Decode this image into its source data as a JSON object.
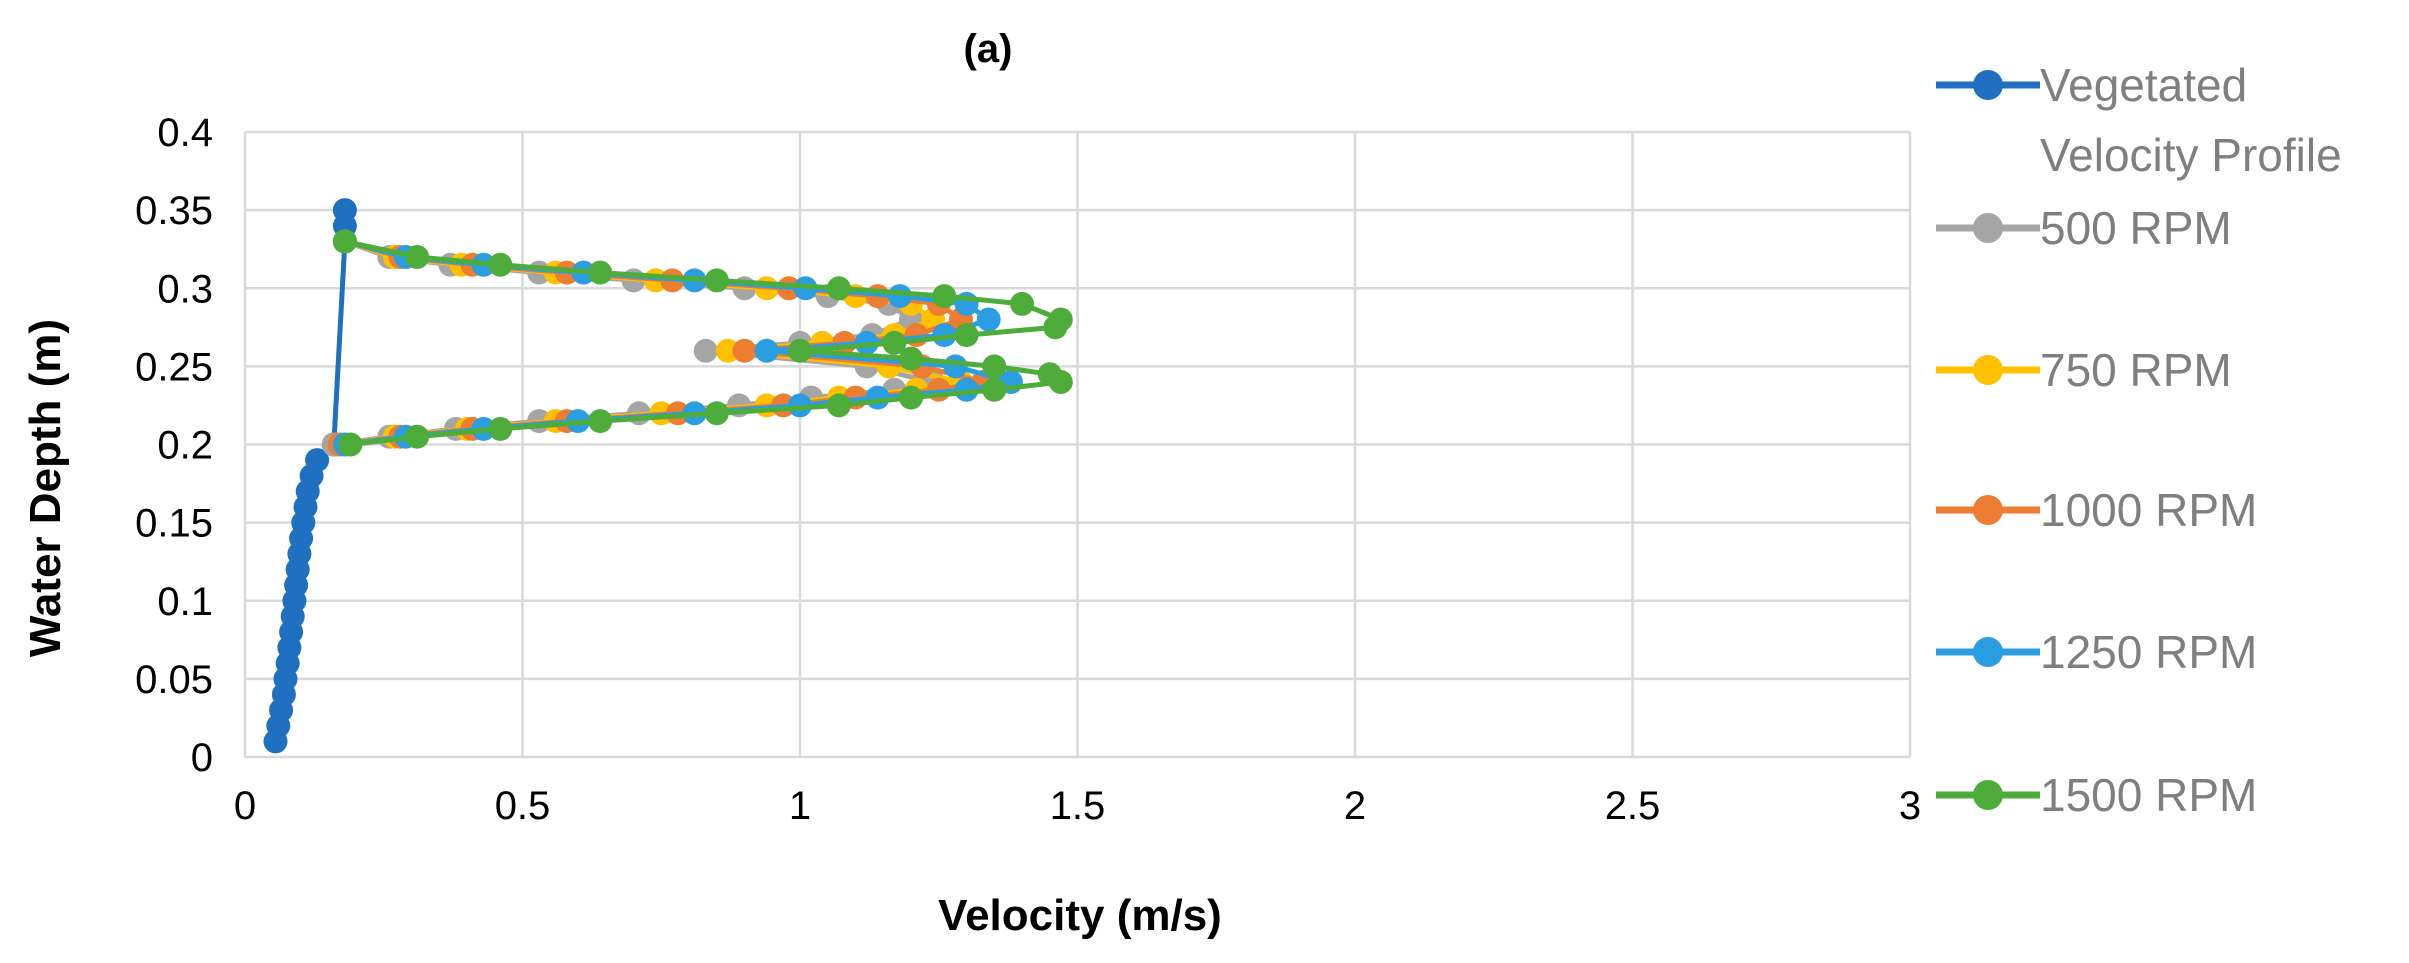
{
  "chart_data": {
    "type": "line",
    "title": "(a)",
    "xlabel": "Velocity (m/s)",
    "ylabel": "Water Depth (m)",
    "xlim": [
      0,
      3
    ],
    "ylim": [
      0,
      0.4
    ],
    "xticks": [
      "0",
      "0.5",
      "1",
      "1.5",
      "2",
      "2.5",
      "3"
    ],
    "yticks": [
      "0",
      "0.05",
      "0.1",
      "0.15",
      "0.2",
      "0.25",
      "0.3",
      "0.35",
      "0.4"
    ],
    "grid": true,
    "legend_position": "right",
    "series": [
      {
        "name": "Vegetated Velocity Profile",
        "color": "#1f70c1",
        "points": [
          [
            0.055,
            0.01
          ],
          [
            0.06,
            0.02
          ],
          [
            0.065,
            0.03
          ],
          [
            0.07,
            0.04
          ],
          [
            0.073,
            0.05
          ],
          [
            0.077,
            0.06
          ],
          [
            0.08,
            0.07
          ],
          [
            0.083,
            0.08
          ],
          [
            0.086,
            0.09
          ],
          [
            0.089,
            0.1
          ],
          [
            0.092,
            0.11
          ],
          [
            0.095,
            0.12
          ],
          [
            0.098,
            0.13
          ],
          [
            0.101,
            0.14
          ],
          [
            0.105,
            0.15
          ],
          [
            0.109,
            0.16
          ],
          [
            0.113,
            0.17
          ],
          [
            0.12,
            0.18
          ],
          [
            0.13,
            0.19
          ],
          [
            0.16,
            0.2
          ],
          [
            0.18,
            0.33
          ],
          [
            0.18,
            0.34
          ],
          [
            0.18,
            0.35
          ]
        ]
      },
      {
        "name": "500 RPM",
        "color": "#a5a5a5",
        "points": [
          [
            0.16,
            0.2
          ],
          [
            0.26,
            0.205
          ],
          [
            0.38,
            0.21
          ],
          [
            0.53,
            0.215
          ],
          [
            0.71,
            0.22
          ],
          [
            0.89,
            0.225
          ],
          [
            1.02,
            0.23
          ],
          [
            1.17,
            0.235
          ],
          [
            1.24,
            0.24
          ],
          [
            1.12,
            0.25
          ],
          [
            0.83,
            0.26
          ],
          [
            1.0,
            0.265
          ],
          [
            1.13,
            0.27
          ],
          [
            1.2,
            0.28
          ],
          [
            1.16,
            0.29
          ],
          [
            1.05,
            0.295
          ],
          [
            0.9,
            0.3
          ],
          [
            0.7,
            0.305
          ],
          [
            0.53,
            0.31
          ],
          [
            0.37,
            0.315
          ],
          [
            0.26,
            0.32
          ],
          [
            0.18,
            0.33
          ]
        ]
      },
      {
        "name": "750 RPM",
        "color": "#ffc000",
        "points": [
          [
            0.17,
            0.2
          ],
          [
            0.27,
            0.205
          ],
          [
            0.4,
            0.21
          ],
          [
            0.56,
            0.215
          ],
          [
            0.75,
            0.22
          ],
          [
            0.94,
            0.225
          ],
          [
            1.07,
            0.23
          ],
          [
            1.21,
            0.235
          ],
          [
            1.29,
            0.24
          ],
          [
            1.16,
            0.25
          ],
          [
            0.87,
            0.26
          ],
          [
            1.04,
            0.265
          ],
          [
            1.17,
            0.27
          ],
          [
            1.24,
            0.28
          ],
          [
            1.2,
            0.29
          ],
          [
            1.1,
            0.295
          ],
          [
            0.94,
            0.3
          ],
          [
            0.74,
            0.305
          ],
          [
            0.56,
            0.31
          ],
          [
            0.39,
            0.315
          ],
          [
            0.27,
            0.32
          ],
          [
            0.18,
            0.33
          ]
        ]
      },
      {
        "name": "1000 RPM",
        "color": "#ed7d31",
        "points": [
          [
            0.17,
            0.2
          ],
          [
            0.28,
            0.205
          ],
          [
            0.41,
            0.21
          ],
          [
            0.58,
            0.215
          ],
          [
            0.78,
            0.22
          ],
          [
            0.97,
            0.225
          ],
          [
            1.1,
            0.23
          ],
          [
            1.25,
            0.235
          ],
          [
            1.33,
            0.24
          ],
          [
            1.22,
            0.25
          ],
          [
            0.9,
            0.26
          ],
          [
            1.08,
            0.265
          ],
          [
            1.21,
            0.27
          ],
          [
            1.29,
            0.28
          ],
          [
            1.25,
            0.29
          ],
          [
            1.14,
            0.295
          ],
          [
            0.98,
            0.3
          ],
          [
            0.77,
            0.305
          ],
          [
            0.58,
            0.31
          ],
          [
            0.41,
            0.315
          ],
          [
            0.28,
            0.32
          ],
          [
            0.18,
            0.33
          ]
        ]
      },
      {
        "name": "1250 RPM",
        "color": "#2a9ee0",
        "points": [
          [
            0.18,
            0.2
          ],
          [
            0.29,
            0.205
          ],
          [
            0.43,
            0.21
          ],
          [
            0.6,
            0.215
          ],
          [
            0.81,
            0.22
          ],
          [
            1.0,
            0.225
          ],
          [
            1.14,
            0.23
          ],
          [
            1.3,
            0.235
          ],
          [
            1.38,
            0.24
          ],
          [
            1.28,
            0.25
          ],
          [
            0.94,
            0.26
          ],
          [
            1.12,
            0.265
          ],
          [
            1.26,
            0.27
          ],
          [
            1.34,
            0.28
          ],
          [
            1.3,
            0.29
          ],
          [
            1.18,
            0.295
          ],
          [
            1.01,
            0.3
          ],
          [
            0.81,
            0.305
          ],
          [
            0.61,
            0.31
          ],
          [
            0.43,
            0.315
          ],
          [
            0.29,
            0.32
          ],
          [
            0.18,
            0.33
          ]
        ]
      },
      {
        "name": "1500 RPM",
        "color": "#4eac3a",
        "points": [
          [
            0.19,
            0.2
          ],
          [
            0.31,
            0.205
          ],
          [
            0.46,
            0.21
          ],
          [
            0.64,
            0.215
          ],
          [
            0.85,
            0.22
          ],
          [
            1.07,
            0.225
          ],
          [
            1.2,
            0.23
          ],
          [
            1.35,
            0.235
          ],
          [
            1.47,
            0.24
          ],
          [
            1.45,
            0.245
          ],
          [
            1.35,
            0.25
          ],
          [
            1.2,
            0.255
          ],
          [
            1.0,
            0.26
          ],
          [
            1.17,
            0.265
          ],
          [
            1.3,
            0.27
          ],
          [
            1.46,
            0.275
          ],
          [
            1.47,
            0.28
          ],
          [
            1.4,
            0.29
          ],
          [
            1.26,
            0.295
          ],
          [
            1.07,
            0.3
          ],
          [
            0.85,
            0.305
          ],
          [
            0.64,
            0.31
          ],
          [
            0.46,
            0.315
          ],
          [
            0.31,
            0.32
          ],
          [
            0.18,
            0.33
          ]
        ]
      }
    ]
  }
}
